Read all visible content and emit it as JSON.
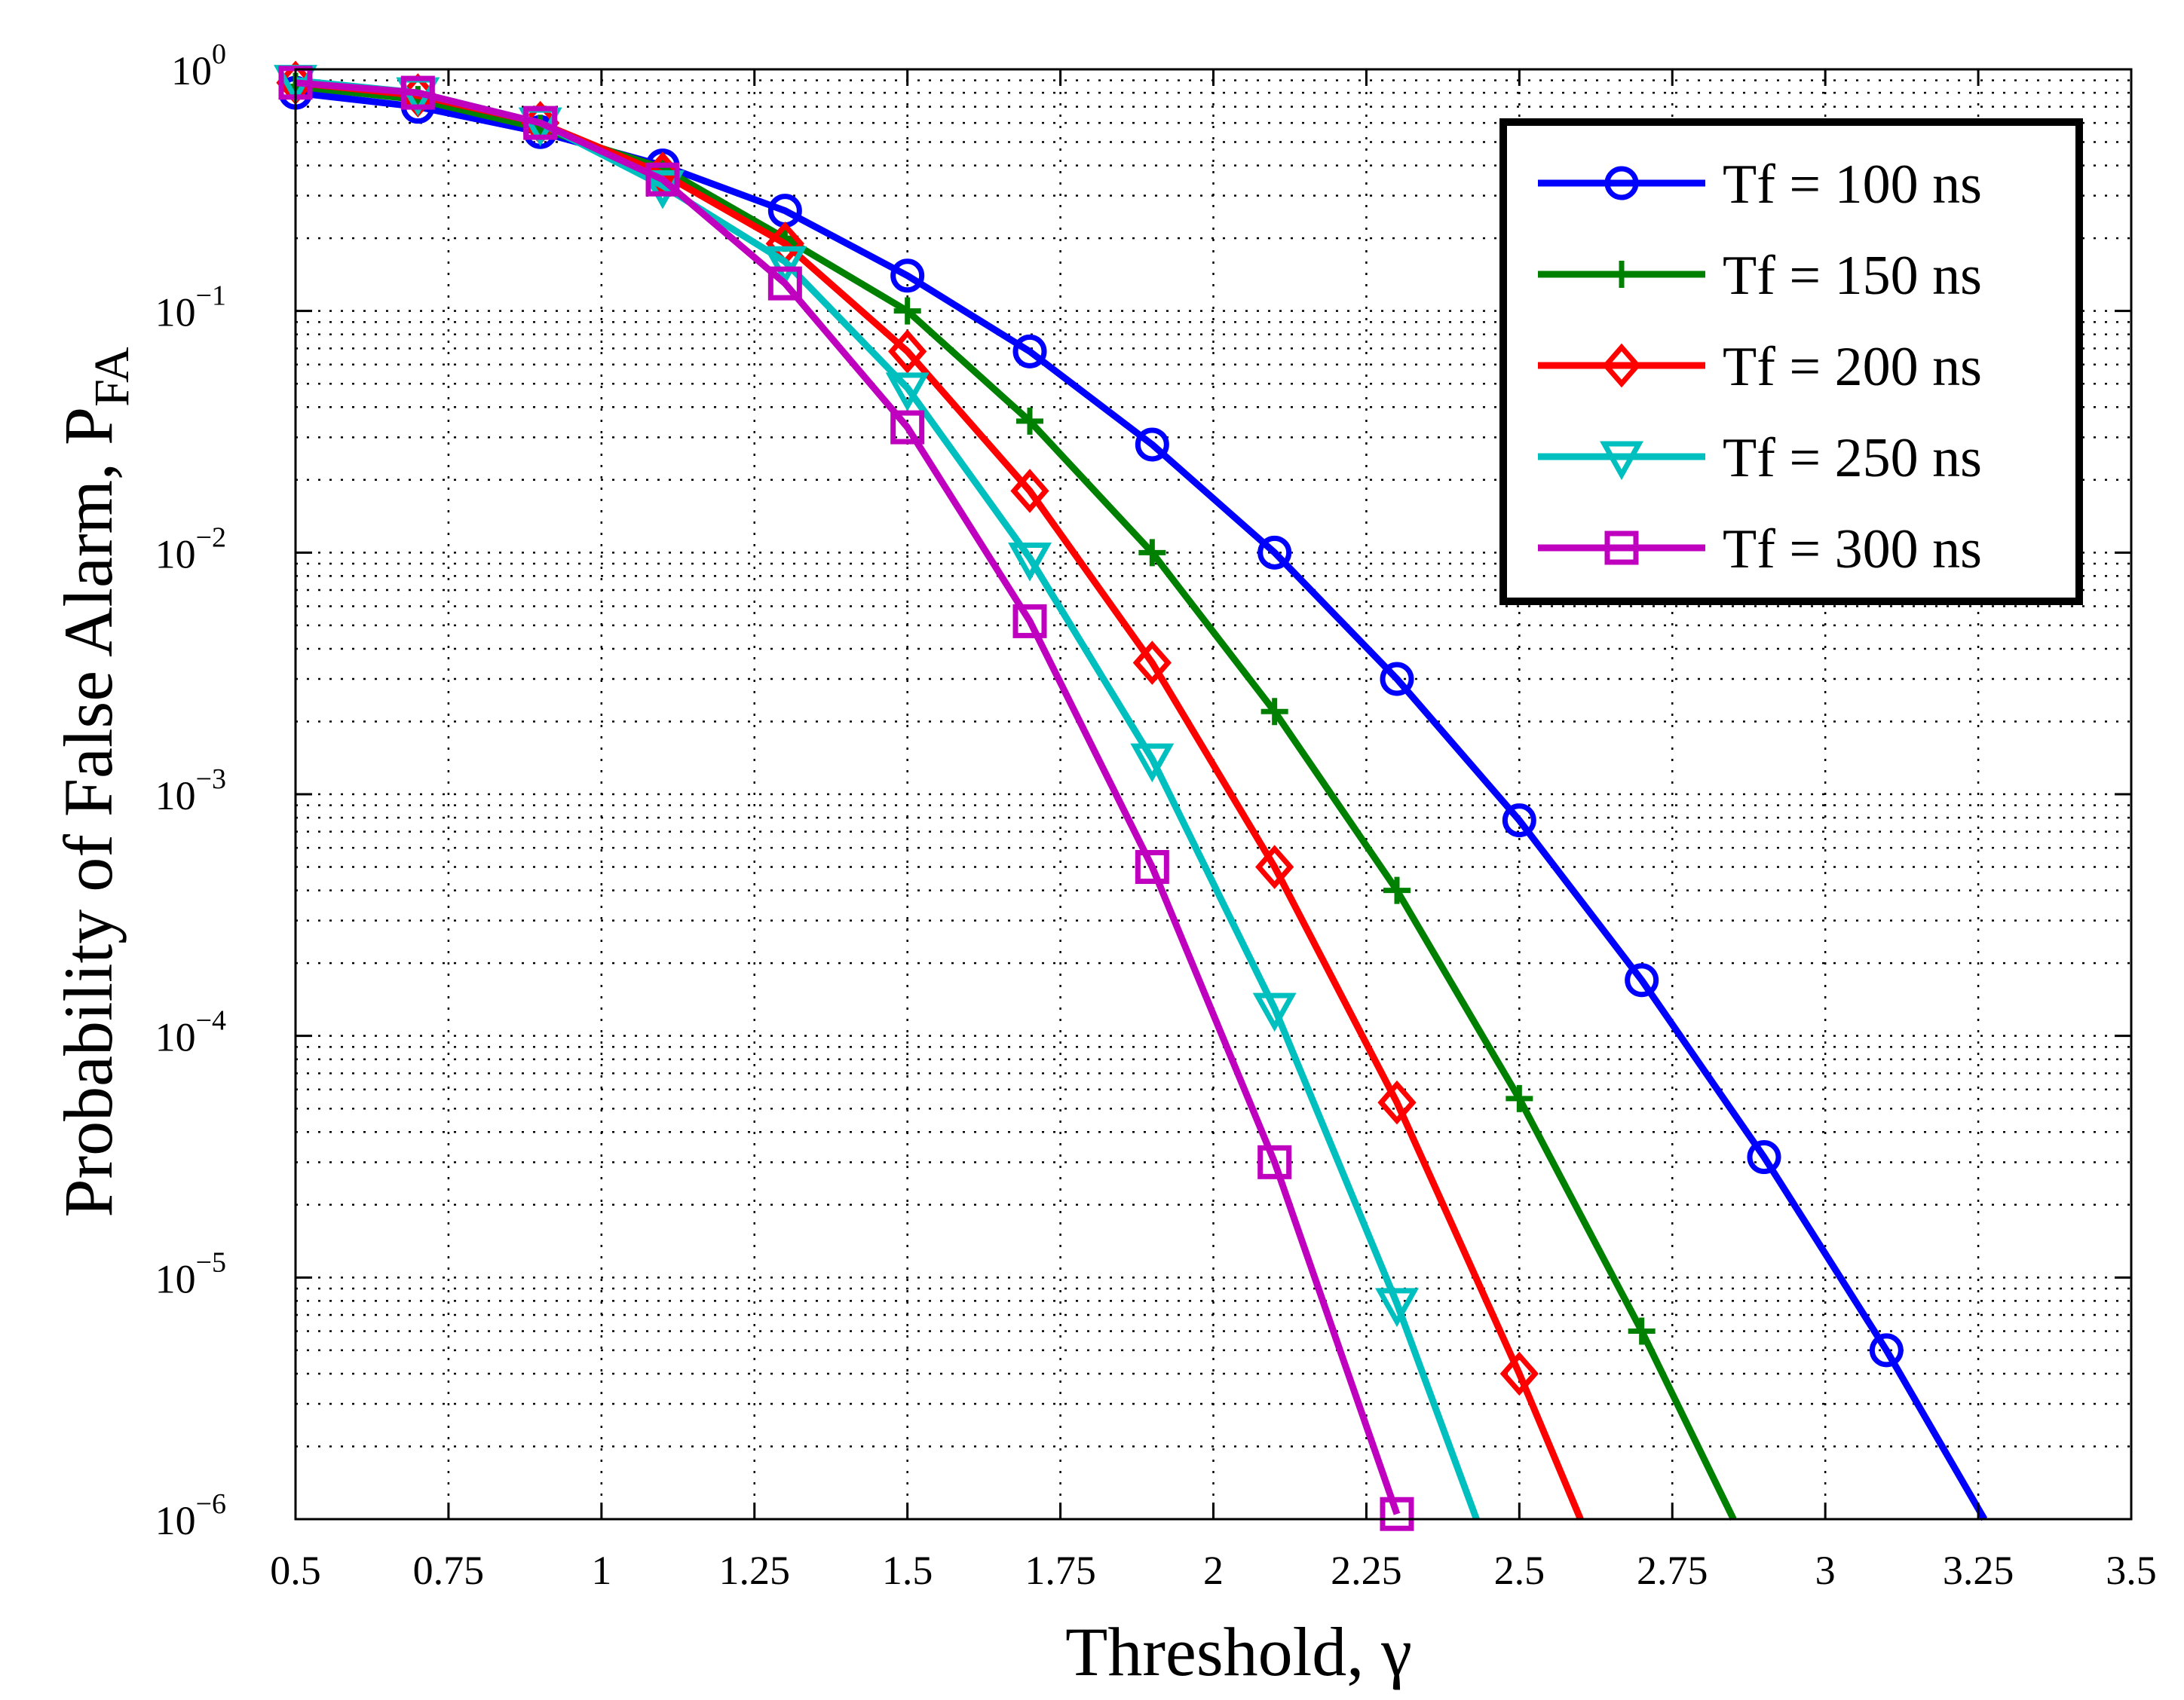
{
  "chart_data": {
    "type": "line",
    "title": "",
    "xlabel": "Threshold, γ",
    "ylabel": "Probability of False Alarm, P",
    "ylabel_subscript": "FA",
    "xlim": [
      0.5,
      3.5
    ],
    "ylim": [
      1e-06,
      1
    ],
    "yscale": "log",
    "grid": true,
    "legend_position": "top-right",
    "x_ticks": [
      0.5,
      0.75,
      1,
      1.25,
      1.5,
      1.75,
      2,
      2.25,
      2.5,
      2.75,
      3,
      3.25,
      3.5
    ],
    "x_tick_labels": [
      "0.5",
      "0.75",
      "1",
      "1.25",
      "1.5",
      "1.75",
      "2",
      "2.25",
      "2.5",
      "2.75",
      "3",
      "3.25",
      "3.5"
    ],
    "y_tick_exponents": [
      0,
      -1,
      -2,
      -3,
      -4,
      -5,
      -6
    ],
    "y_tick_labels": [
      {
        "base": "10",
        "exp": "0"
      },
      {
        "base": "10",
        "exp": "−1"
      },
      {
        "base": "10",
        "exp": "−2"
      },
      {
        "base": "10",
        "exp": "−3"
      },
      {
        "base": "10",
        "exp": "−4"
      },
      {
        "base": "10",
        "exp": "−5"
      },
      {
        "base": "10",
        "exp": "−6"
      }
    ],
    "series": [
      {
        "name": "Tf = 100 ns",
        "color": "#0000ff",
        "marker": "circle",
        "x": [
          0.5,
          0.7,
          0.9,
          1.1,
          1.3,
          1.5,
          1.7,
          1.9,
          2.1,
          2.3,
          2.5,
          2.7,
          2.9,
          3.1,
          3.26
        ],
        "y": [
          0.8,
          0.7,
          0.55,
          0.4,
          0.26,
          0.14,
          0.068,
          0.028,
          0.01,
          0.003,
          0.00078,
          0.00017,
          3.15e-05,
          5e-06,
          1e-06
        ],
        "marker_count": 14
      },
      {
        "name": "Tf = 150 ns",
        "color": "#008000",
        "marker": "plus",
        "x": [
          0.5,
          0.7,
          0.9,
          1.1,
          1.3,
          1.5,
          1.7,
          1.9,
          2.1,
          2.3,
          2.5,
          2.7,
          2.85
        ],
        "y": [
          0.85,
          0.75,
          0.57,
          0.39,
          0.2,
          0.1,
          0.035,
          0.01,
          0.0022,
          0.0004,
          5.5e-05,
          6e-06,
          1e-06
        ],
        "marker_count": 12
      },
      {
        "name": "Tf = 200 ns",
        "color": "#ff0000",
        "marker": "diamond",
        "x": [
          0.5,
          0.7,
          0.9,
          1.1,
          1.3,
          1.5,
          1.7,
          1.9,
          2.1,
          2.3,
          2.5,
          2.6
        ],
        "y": [
          0.88,
          0.78,
          0.6,
          0.37,
          0.19,
          0.068,
          0.018,
          0.0035,
          0.0005,
          5.3e-05,
          4e-06,
          1e-06
        ],
        "marker_count": 11
      },
      {
        "name": "Tf = 250 ns",
        "color": "#00bfbf",
        "marker": "triangle-down",
        "x": [
          0.5,
          0.7,
          0.9,
          1.1,
          1.3,
          1.5,
          1.7,
          1.9,
          2.1,
          2.3,
          2.43
        ],
        "y": [
          0.9,
          0.8,
          0.6,
          0.33,
          0.16,
          0.048,
          0.0095,
          0.0014,
          0.00013,
          7.8e-06,
          1e-06
        ],
        "marker_count": 10
      },
      {
        "name": "Tf = 300 ns",
        "color": "#bf00bf",
        "marker": "square",
        "x": [
          0.5,
          0.7,
          0.9,
          1.1,
          1.3,
          1.5,
          1.7,
          1.9,
          2.1,
          2.3
        ],
        "y": [
          0.88,
          0.8,
          0.6,
          0.35,
          0.13,
          0.033,
          0.0052,
          0.0005,
          3e-05,
          1.05e-06
        ],
        "marker_count": 10
      }
    ]
  }
}
